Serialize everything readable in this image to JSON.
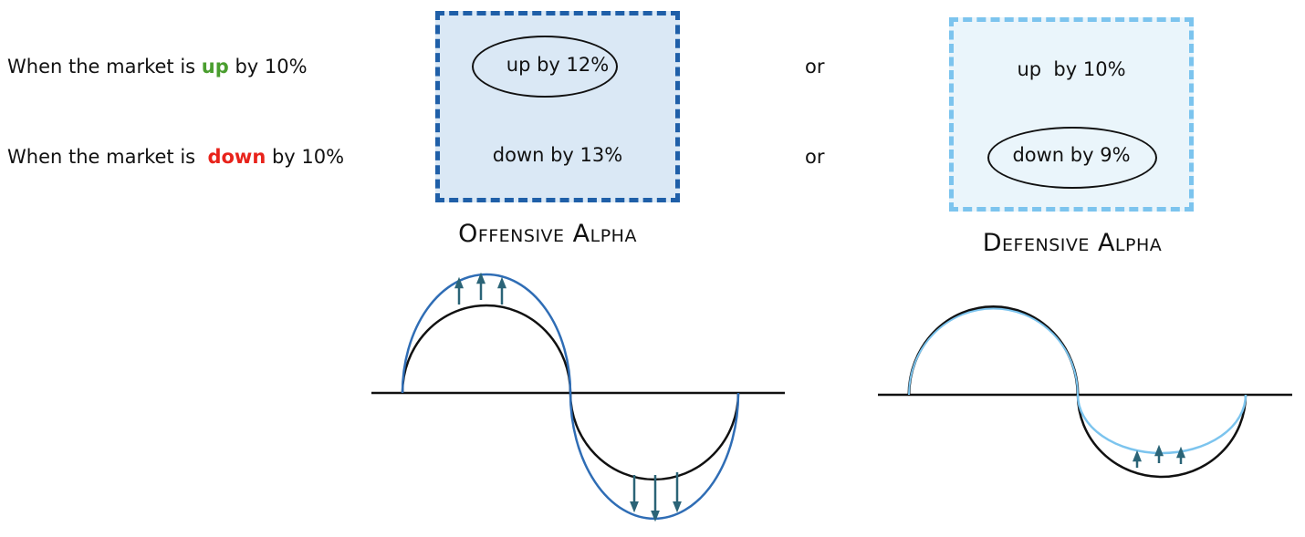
{
  "rows": [
    {
      "prefix": "When the market is ",
      "keyword": "up",
      "keyword_color": "#4a9e2f",
      "suffix": " by 10%"
    },
    {
      "prefix": "When the market is  ",
      "keyword": "down",
      "keyword_color": "#e8231b",
      "suffix": " by 10%"
    }
  ],
  "connector": "or",
  "offensive": {
    "up_text": "up by 12%",
    "down_text": "down by 13%",
    "circled": "up",
    "caption": "Offensive Alpha",
    "box_fill": "#dae8f5",
    "border_color": "#1f5fa8",
    "curve_color": "#2f6db5"
  },
  "defensive": {
    "up_text": "up  by 10%",
    "down_text": "down by 9%",
    "circled": "down",
    "caption": "Defensive Alpha",
    "box_fill": "#eaf5fb",
    "border_color": "#7cc4ee",
    "curve_color": "#7cc4ee"
  },
  "arrow_color": "#2b6477",
  "baseline_color": "#111111"
}
